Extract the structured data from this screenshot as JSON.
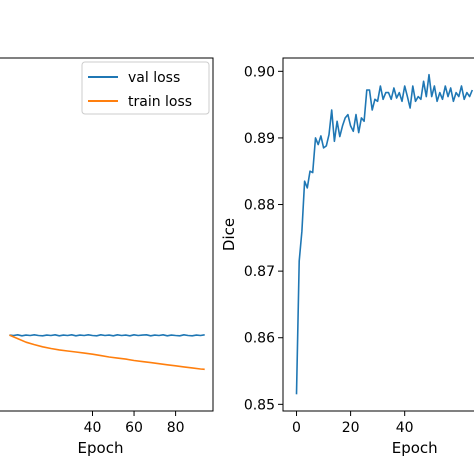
{
  "chart_data": [
    {
      "type": "line",
      "xlabel": "Epoch",
      "ylabel": "",
      "xlim": [
        -5,
        98
      ],
      "ylim": [
        0,
        1
      ],
      "x_ticks": [
        40,
        60,
        80
      ],
      "x_tick_labels": [
        "40",
        "60",
        "80"
      ],
      "legend": {
        "position": "top-right",
        "entries": [
          "val loss",
          "train loss"
        ]
      },
      "series": [
        {
          "name": "val loss",
          "color": "#1f77b4",
          "x": [
            0,
            2,
            4,
            6,
            8,
            10,
            12,
            14,
            16,
            18,
            20,
            22,
            24,
            26,
            28,
            30,
            32,
            34,
            36,
            38,
            40,
            42,
            44,
            46,
            48,
            50,
            52,
            54,
            56,
            58,
            60,
            62,
            64,
            66,
            68,
            70,
            72,
            74,
            76,
            78,
            80,
            82,
            84,
            86,
            88,
            90,
            92,
            94
          ],
          "values": [
            0.215,
            0.214,
            0.216,
            0.213,
            0.215,
            0.214,
            0.216,
            0.214,
            0.213,
            0.215,
            0.214,
            0.216,
            0.213,
            0.215,
            0.214,
            0.216,
            0.213,
            0.215,
            0.214,
            0.216,
            0.214,
            0.213,
            0.216,
            0.214,
            0.215,
            0.213,
            0.216,
            0.214,
            0.215,
            0.213,
            0.216,
            0.214,
            0.215,
            0.216,
            0.213,
            0.215,
            0.214,
            0.216,
            0.213,
            0.215,
            0.214,
            0.213,
            0.216,
            0.214,
            0.213,
            0.215,
            0.214,
            0.216
          ]
        },
        {
          "name": "train loss",
          "color": "#ff7f0e",
          "x": [
            0,
            4,
            8,
            12,
            16,
            20,
            24,
            28,
            32,
            36,
            40,
            44,
            48,
            52,
            56,
            60,
            64,
            68,
            72,
            76,
            80,
            84,
            88,
            92,
            94
          ],
          "values": [
            0.215,
            0.205,
            0.195,
            0.188,
            0.182,
            0.177,
            0.173,
            0.17,
            0.167,
            0.164,
            0.161,
            0.157,
            0.153,
            0.15,
            0.147,
            0.143,
            0.14,
            0.137,
            0.134,
            0.131,
            0.128,
            0.125,
            0.122,
            0.119,
            0.118
          ]
        }
      ]
    },
    {
      "type": "line",
      "xlabel": "Epoch",
      "ylabel": "Dice",
      "xlim": [
        -5,
        66
      ],
      "ylim": [
        0.849,
        0.902
      ],
      "x_ticks": [
        0,
        20,
        40
      ],
      "x_tick_labels": [
        "0",
        "20",
        "40"
      ],
      "y_ticks": [
        0.85,
        0.86,
        0.87,
        0.88,
        0.89,
        0.9
      ],
      "y_tick_labels": [
        "0.85",
        "0.86",
        "0.87",
        "0.88",
        "0.89",
        "0.90"
      ],
      "series": [
        {
          "name": "",
          "color": "#1f77b4",
          "x": [
            0,
            1,
            2,
            3,
            4,
            5,
            6,
            7,
            8,
            9,
            10,
            11,
            12,
            13,
            14,
            15,
            16,
            17,
            18,
            19,
            20,
            21,
            22,
            23,
            24,
            25,
            26,
            27,
            28,
            29,
            30,
            31,
            32,
            33,
            34,
            35,
            36,
            37,
            38,
            39,
            40,
            41,
            42,
            43,
            44,
            45,
            46,
            47,
            48,
            49,
            50,
            51,
            52,
            53,
            54,
            55,
            56,
            57,
            58,
            59,
            60,
            61,
            62,
            63,
            64,
            65
          ],
          "values": [
            0.8515,
            0.8715,
            0.876,
            0.8835,
            0.8825,
            0.885,
            0.8848,
            0.89,
            0.889,
            0.8903,
            0.8885,
            0.8888,
            0.8905,
            0.8942,
            0.8895,
            0.8925,
            0.8902,
            0.8918,
            0.893,
            0.8935,
            0.8918,
            0.891,
            0.8935,
            0.8908,
            0.893,
            0.8925,
            0.8972,
            0.8972,
            0.8942,
            0.8958,
            0.8955,
            0.8978,
            0.8958,
            0.8968,
            0.8968,
            0.8958,
            0.8975,
            0.896,
            0.8968,
            0.8955,
            0.8978,
            0.8962,
            0.8945,
            0.8978,
            0.8955,
            0.8962,
            0.8958,
            0.8985,
            0.8962,
            0.8995,
            0.8962,
            0.8978,
            0.8955,
            0.8968,
            0.8958,
            0.8978,
            0.8962,
            0.8975,
            0.8955,
            0.8968,
            0.8962,
            0.8978,
            0.8958,
            0.8968,
            0.8962,
            0.8972
          ]
        }
      ]
    }
  ]
}
